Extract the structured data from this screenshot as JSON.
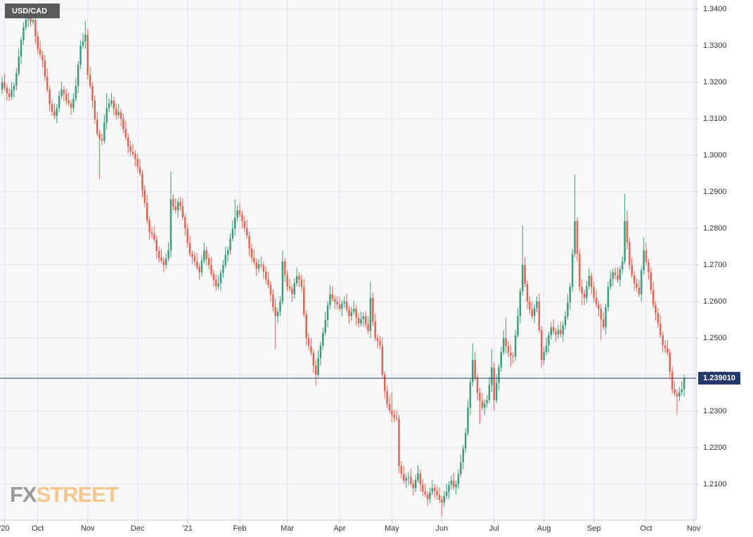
{
  "logo": [
    "FX",
    "STREET"
  ],
  "chart_data": {
    "type": "candlestick",
    "title": "USD/CAD",
    "up_color": "#3a9a78",
    "down_color": "#e2604c",
    "grid": true,
    "last_price": {
      "value": 1.23901,
      "label": "1.239010"
    },
    "ylim": [
      1.2002,
      1.3425
    ],
    "yticks": [
      {
        "value": 1.21,
        "label": "1.2100"
      },
      {
        "value": 1.22,
        "label": "1.2200"
      },
      {
        "value": 1.23,
        "label": "1.2300"
      },
      {
        "value": 1.24,
        "label": "1.2400"
      },
      {
        "value": 1.25,
        "label": "1.2500"
      },
      {
        "value": 1.26,
        "label": "1.2600"
      },
      {
        "value": 1.27,
        "label": "1.2700"
      },
      {
        "value": 1.28,
        "label": "1.2800"
      },
      {
        "value": 1.29,
        "label": "1.2900"
      },
      {
        "value": 1.3,
        "label": "1.3000"
      },
      {
        "value": 1.31,
        "label": "1.3100"
      },
      {
        "value": 1.32,
        "label": "1.3200"
      },
      {
        "value": 1.33,
        "label": "1.3300"
      },
      {
        "value": 1.34,
        "label": "1.3400"
      }
    ],
    "xlim": [
      -0.9,
      292
    ],
    "xticks": [
      {
        "value": 1,
        "label": "'20"
      },
      {
        "value": 15,
        "label": "Oct"
      },
      {
        "value": 36,
        "label": "Nov"
      },
      {
        "value": 57,
        "label": "Dec"
      },
      {
        "value": 78,
        "label": "'21"
      },
      {
        "value": 100,
        "label": "Feb"
      },
      {
        "value": 120,
        "label": "Mar"
      },
      {
        "value": 142,
        "label": "Apr"
      },
      {
        "value": 164,
        "label": "May"
      },
      {
        "value": 185,
        "label": "Jun"
      },
      {
        "value": 207,
        "label": "Jul"
      },
      {
        "value": 228,
        "label": "Aug"
      },
      {
        "value": 249,
        "label": "Sep"
      },
      {
        "value": 271,
        "label": "Oct"
      },
      {
        "value": 291,
        "label": "Nov"
      }
    ],
    "close": [
      1.32,
      1.3185,
      1.317,
      1.316,
      1.3178,
      1.319,
      1.3225,
      1.327,
      1.3315,
      1.335,
      1.3372,
      1.339,
      1.3365,
      1.337,
      1.3325,
      1.329,
      1.3275,
      1.326,
      1.3215,
      1.318,
      1.314,
      1.312,
      1.3108,
      1.313,
      1.3162,
      1.318,
      1.3168,
      1.315,
      1.3142,
      1.313,
      1.3155,
      1.319,
      1.3248,
      1.33,
      1.3312,
      1.333,
      1.322,
      1.319,
      1.315,
      1.3098,
      1.306,
      1.3045,
      1.304,
      1.309,
      1.313,
      1.3142,
      1.315,
      1.3128,
      1.311,
      1.3118,
      1.31,
      1.3072,
      1.305,
      1.3025,
      1.301,
      1.3004,
      1.299,
      1.2968,
      1.295,
      1.2905,
      1.287,
      1.2822,
      1.279,
      1.2785,
      1.277,
      1.2738,
      1.272,
      1.2712,
      1.27,
      1.2718,
      1.274,
      1.288,
      1.286,
      1.285,
      1.2872,
      1.286,
      1.283,
      1.28,
      1.276,
      1.273,
      1.2722,
      1.271,
      1.2695,
      1.268,
      1.2712,
      1.274,
      1.2718,
      1.27,
      1.2676,
      1.266,
      1.2642,
      1.265,
      1.2678,
      1.27,
      1.2728,
      1.274,
      1.2772,
      1.28,
      1.283,
      1.285,
      1.2838,
      1.282,
      1.2802,
      1.278,
      1.2745,
      1.272,
      1.2708,
      1.269,
      1.2702,
      1.27,
      1.2682,
      1.266,
      1.2645,
      1.262,
      1.2585,
      1.256,
      1.2572,
      1.26,
      1.271,
      1.2672,
      1.264,
      1.2635,
      1.262,
      1.265,
      1.267,
      1.266,
      1.264,
      1.2565,
      1.25,
      1.2478,
      1.246,
      1.2425,
      1.24,
      1.2445,
      1.248,
      1.2515,
      1.255,
      1.259,
      1.262,
      1.2608,
      1.26,
      1.2592,
      1.258,
      1.2595,
      1.26,
      1.2578,
      1.256,
      1.2572,
      1.258,
      1.2555,
      1.254,
      1.2552,
      1.256,
      1.2538,
      1.252,
      1.261,
      1.2545,
      1.25,
      1.2492,
      1.248,
      1.24,
      1.2355,
      1.232,
      1.2302,
      1.229,
      1.2282,
      1.228,
      1.215,
      1.2128,
      1.211,
      1.2118,
      1.212,
      1.2102,
      1.209,
      1.2112,
      1.213,
      1.21,
      1.208,
      1.2072,
      1.206,
      1.2078,
      1.209,
      1.2082,
      1.207,
      1.2058,
      1.205,
      1.2068,
      1.208,
      1.2098,
      1.211,
      1.2092,
      1.21,
      1.2128,
      1.216,
      1.2198,
      1.224,
      1.231,
      1.238,
      1.244,
      1.2392,
      1.235,
      1.2328,
      1.231,
      1.2322,
      1.233,
      1.2372,
      1.242,
      1.233,
      1.2378,
      1.242,
      1.2462,
      1.25,
      1.2478,
      1.246,
      1.2452,
      1.245,
      1.2508,
      1.256,
      1.2628,
      1.27,
      1.2648,
      1.26,
      1.2578,
      1.256,
      1.2582,
      1.26,
      1.2522,
      1.244,
      1.2462,
      1.248,
      1.2508,
      1.253,
      1.2518,
      1.251,
      1.2522,
      1.251,
      1.2535,
      1.256,
      1.2598,
      1.264,
      1.273,
      1.282,
      1.273,
      1.264,
      1.2622,
      1.261,
      1.2642,
      1.267,
      1.264,
      1.261,
      1.2592,
      1.258,
      1.2552,
      1.253,
      1.2585,
      1.264,
      1.2662,
      1.268,
      1.2672,
      1.266,
      1.2688,
      1.271,
      1.282,
      1.2762,
      1.27,
      1.2672,
      1.265,
      1.2638,
      1.262,
      1.2685,
      1.274,
      1.2708,
      1.268,
      1.2632,
      1.259,
      1.2568,
      1.254,
      1.2508,
      1.248,
      1.2472,
      1.246,
      1.2408,
      1.236,
      1.2348,
      1.234,
      1.2352,
      1.236,
      1.239
    ],
    "open": [
      1.318,
      1.32,
      1.3185,
      1.317,
      1.316,
      1.3178,
      1.319,
      1.3225,
      1.327,
      1.3315,
      1.335,
      1.3372,
      1.339,
      1.3365,
      1.337,
      1.3325,
      1.329,
      1.3275,
      1.326,
      1.3215,
      1.318,
      1.314,
      1.312,
      1.3108,
      1.313,
      1.3162,
      1.318,
      1.3168,
      1.315,
      1.3142,
      1.313,
      1.3155,
      1.319,
      1.3248,
      1.33,
      1.3312,
      1.333,
      1.322,
      1.319,
      1.315,
      1.3098,
      1.306,
      1.3045,
      1.304,
      1.309,
      1.313,
      1.3142,
      1.315,
      1.3128,
      1.311,
      1.3118,
      1.31,
      1.3072,
      1.305,
      1.3025,
      1.301,
      1.3004,
      1.299,
      1.2968,
      1.295,
      1.2905,
      1.287,
      1.2822,
      1.279,
      1.2785,
      1.277,
      1.2738,
      1.272,
      1.2712,
      1.27,
      1.2718,
      1.274,
      1.288,
      1.286,
      1.285,
      1.2872,
      1.286,
      1.283,
      1.28,
      1.276,
      1.273,
      1.2722,
      1.271,
      1.2695,
      1.268,
      1.2712,
      1.274,
      1.2718,
      1.27,
      1.2676,
      1.266,
      1.2642,
      1.265,
      1.2678,
      1.27,
      1.2728,
      1.274,
      1.2772,
      1.28,
      1.283,
      1.285,
      1.2838,
      1.282,
      1.2802,
      1.278,
      1.2745,
      1.272,
      1.2708,
      1.269,
      1.2702,
      1.27,
      1.2682,
      1.266,
      1.2645,
      1.262,
      1.2585,
      1.256,
      1.2572,
      1.26,
      1.271,
      1.2672,
      1.264,
      1.2635,
      1.262,
      1.265,
      1.267,
      1.266,
      1.264,
      1.2565,
      1.25,
      1.2478,
      1.246,
      1.2425,
      1.24,
      1.2445,
      1.248,
      1.2515,
      1.255,
      1.259,
      1.262,
      1.2608,
      1.26,
      1.2592,
      1.258,
      1.2595,
      1.26,
      1.2578,
      1.256,
      1.2572,
      1.258,
      1.2555,
      1.254,
      1.2552,
      1.256,
      1.2538,
      1.252,
      1.261,
      1.2545,
      1.25,
      1.2492,
      1.248,
      1.24,
      1.2355,
      1.232,
      1.2302,
      1.229,
      1.2282,
      1.228,
      1.215,
      1.2128,
      1.211,
      1.2118,
      1.212,
      1.2102,
      1.209,
      1.2112,
      1.213,
      1.21,
      1.208,
      1.2072,
      1.206,
      1.2078,
      1.209,
      1.2082,
      1.207,
      1.2058,
      1.205,
      1.2068,
      1.208,
      1.2098,
      1.211,
      1.2092,
      1.21,
      1.2128,
      1.216,
      1.2198,
      1.224,
      1.231,
      1.238,
      1.244,
      1.2392,
      1.235,
      1.2328,
      1.231,
      1.2322,
      1.233,
      1.2372,
      1.242,
      1.233,
      1.2378,
      1.242,
      1.2462,
      1.25,
      1.2478,
      1.246,
      1.2452,
      1.245,
      1.2508,
      1.256,
      1.2628,
      1.27,
      1.2648,
      1.26,
      1.2578,
      1.256,
      1.2582,
      1.26,
      1.2522,
      1.244,
      1.2462,
      1.248,
      1.2508,
      1.253,
      1.2518,
      1.251,
      1.2522,
      1.251,
      1.2535,
      1.256,
      1.2598,
      1.264,
      1.273,
      1.282,
      1.273,
      1.264,
      1.2622,
      1.261,
      1.2642,
      1.267,
      1.264,
      1.261,
      1.2592,
      1.258,
      1.2552,
      1.253,
      1.2585,
      1.264,
      1.2662,
      1.268,
      1.2672,
      1.266,
      1.2688,
      1.271,
      1.282,
      1.2762,
      1.27,
      1.2672,
      1.265,
      1.2638,
      1.262,
      1.2685,
      1.274,
      1.2708,
      1.268,
      1.2632,
      1.259,
      1.2568,
      1.254,
      1.2508,
      1.248,
      1.2472,
      1.246,
      1.2408,
      1.236,
      1.2348,
      1.234,
      1.2352,
      1.236
    ],
    "high": [
      1.3214,
      1.3222,
      1.3195,
      1.3184,
      1.32,
      1.32,
      1.3239,
      1.3292,
      1.3325,
      1.3364,
      1.3394,
      1.3415,
      1.3404,
      1.3392,
      1.338,
      1.3339,
      1.3312,
      1.3285,
      1.3274,
      1.3237,
      1.319,
      1.3154,
      1.3142,
      1.314,
      1.3176,
      1.3202,
      1.319,
      1.3182,
      1.3172,
      1.3152,
      1.3169,
      1.3212,
      1.3258,
      1.3314,
      1.3334,
      1.3368,
      1.3344,
      1.3242,
      1.32,
      1.3164,
      1.312,
      1.307,
      1.3059,
      1.3112,
      1.317,
      1.3156,
      1.3172,
      1.316,
      1.3142,
      1.314,
      1.3128,
      1.3114,
      1.3094,
      1.306,
      1.3039,
      1.3032,
      1.3014,
      1.3004,
      1.299,
      1.296,
      1.2919,
      1.2892,
      1.2832,
      1.2804,
      1.2807,
      1.278,
      1.2752,
      1.2742,
      1.2722,
      1.2732,
      1.2762,
      1.2955,
      1.2894,
      1.2882,
      1.2882,
      1.2886,
      1.2882,
      1.284,
      1.2814,
      1.2782,
      1.274,
      1.2736,
      1.2732,
      1.2705,
      1.2726,
      1.2762,
      1.275,
      1.2732,
      1.2722,
      1.2686,
      1.2674,
      1.2672,
      1.2688,
      1.2714,
      1.275,
      1.275,
      1.2786,
      1.2822,
      1.288,
      1.2864,
      1.2872,
      1.2848,
      1.2834,
      1.2824,
      1.279,
      1.2759,
      1.2742,
      1.2718,
      1.2716,
      1.2724,
      1.271,
      1.2696,
      1.2682,
      1.2655,
      1.2634,
      1.2607,
      1.2582,
      1.2614,
      1.274,
      1.272,
      1.2686,
      1.2662,
      1.2645,
      1.2664,
      1.2692,
      1.268,
      1.2674,
      1.2662,
      1.2575,
      1.2514,
      1.25,
      1.247,
      1.2439,
      1.2467,
      1.249,
      1.2529,
      1.2572,
      1.26,
      1.2645,
      1.2642,
      1.2618,
      1.2614,
      1.2614,
      1.2605,
      1.2614,
      1.2622,
      1.2588,
      1.2586,
      1.2602,
      1.259,
      1.2569,
      1.2574,
      1.257,
      1.2574,
      1.256,
      1.2655,
      1.2624,
      1.2567,
      1.251,
      1.2506,
      1.2502,
      1.241,
      1.2369,
      1.2342,
      1.235,
      1.2304,
      1.2304,
      1.229,
      1.2164,
      1.215,
      1.2128,
      1.2134,
      1.2142,
      1.2112,
      1.2126,
      1.2152,
      1.214,
      1.2114,
      1.2102,
      1.2082,
      1.2092,
      1.2112,
      1.21,
      1.2096,
      1.2092,
      1.2068,
      1.2082,
      1.2102,
      1.2108,
      1.2124,
      1.2132,
      1.211,
      1.2142,
      1.2182,
      1.2208,
      1.2254,
      1.2332,
      1.239,
      1.2485,
      1.2462,
      1.2402,
      1.2364,
      1.235,
      1.2332,
      1.2344,
      1.2394,
      1.247,
      1.2434,
      1.24,
      1.243,
      1.2476,
      1.2522,
      1.2555,
      1.2492,
      1.2482,
      1.2462,
      1.2522,
      1.2582,
      1.2638,
      1.2808,
      1.2722,
      1.2658,
      1.2614,
      1.26,
      1.2592,
      1.2614,
      1.2622,
      1.2532,
      1.2476,
      1.2502,
      1.2518,
      1.2544,
      1.2552,
      1.2528,
      1.2536,
      1.2544,
      1.2545,
      1.2574,
      1.262,
      1.265,
      1.2744,
      1.2948,
      1.283,
      1.2744,
      1.2662,
      1.2632,
      1.2656,
      1.2692,
      1.268,
      1.2654,
      1.2632,
      1.2602,
      1.2594,
      1.2574,
      1.2595,
      1.2654,
      1.2684,
      1.269,
      1.2694,
      1.2694,
      1.2698,
      1.2724,
      1.2895,
      1.2848,
      1.2776,
      1.2722,
      1.2682,
      1.2664,
      1.266,
      1.2695,
      1.2775,
      1.2762,
      1.2718,
      1.2694,
      1.2654,
      1.26,
      1.2582,
      1.2562,
      1.2518,
      1.2494,
      1.2494,
      1.247,
      1.2422,
      1.2382,
      1.2358,
      1.2366,
      1.2382,
      1.24
    ],
    "low": [
      1.3168,
      1.3177,
      1.315,
      1.3148,
      1.3152,
      1.3158,
      1.3178,
      1.3217,
      1.325,
      1.3303,
      1.3342,
      1.3352,
      1.3353,
      1.3357,
      1.3305,
      1.3278,
      1.3267,
      1.324,
      1.3203,
      1.3172,
      1.312,
      1.3108,
      1.31,
      1.3088,
      1.3118,
      1.3154,
      1.3148,
      1.3138,
      1.3134,
      1.311,
      1.3118,
      1.3147,
      1.317,
      1.3236,
      1.3292,
      1.3292,
      1.3208,
      1.3182,
      1.313,
      1.3086,
      1.3052,
      1.2935,
      1.3028,
      1.3032,
      1.307,
      1.3118,
      1.3134,
      1.3108,
      1.3098,
      1.3102,
      1.308,
      1.306,
      1.3042,
      1.3005,
      1.2998,
      1.2996,
      1.297,
      1.2956,
      1.2942,
      1.2885,
      1.2858,
      1.2814,
      1.277,
      1.2773,
      1.2762,
      1.2718,
      1.2708,
      1.2704,
      1.268,
      1.2688,
      1.271,
      1.272,
      1.2848,
      1.2842,
      1.283,
      1.2848,
      1.2822,
      1.278,
      1.2748,
      1.2722,
      1.2702,
      1.2698,
      1.2687,
      1.266,
      1.2668,
      1.2704,
      1.2698,
      1.2688,
      1.2668,
      1.264,
      1.263,
      1.2634,
      1.263,
      1.2666,
      1.2692,
      1.2708,
      1.2728,
      1.2764,
      1.278,
      1.2818,
      1.283,
      1.28,
      1.279,
      1.2772,
      1.2725,
      1.2708,
      1.27,
      1.267,
      1.2678,
      1.2692,
      1.2662,
      1.2648,
      1.2637,
      1.26,
      1.2573,
      1.247,
      1.254,
      1.256,
      1.2592,
      1.2652,
      1.2628,
      1.2627,
      1.26,
      1.2608,
      1.2642,
      1.264,
      1.2628,
      1.2557,
      1.248,
      1.2466,
      1.2452,
      1.2405,
      1.237,
      1.2392,
      1.2425,
      1.2468,
      1.2507,
      1.253,
      1.2578,
      1.26,
      1.258,
      1.258,
      1.2572,
      1.256,
      1.2583,
      1.257,
      1.254,
      1.2548,
      1.2564,
      1.2535,
      1.2528,
      1.2532,
      1.2532,
      1.2526,
      1.2512,
      1.25,
      1.2533,
      1.2492,
      1.2472,
      1.2468,
      1.2392,
      1.2335,
      1.2308,
      1.2294,
      1.227,
      1.227,
      1.2272,
      1.213,
      1.2116,
      1.2102,
      1.209,
      1.2098,
      1.2094,
      1.207,
      1.2078,
      1.2104,
      1.208,
      1.2068,
      1.2064,
      1.204,
      1.2048,
      1.207,
      1.2062,
      1.2058,
      1.205,
      1.2012,
      1.2038,
      1.206,
      1.206,
      1.2086,
      1.2084,
      1.2072,
      1.2088,
      1.212,
      1.214,
      1.2186,
      1.2232,
      1.229,
      1.2368,
      1.2384,
      1.233,
      1.2265,
      1.2302,
      1.229,
      1.231,
      1.2322,
      1.2352,
      1.2302,
      1.2322,
      1.2358,
      1.2408,
      1.2454,
      1.2458,
      1.2448,
      1.242,
      1.243,
      1.2438,
      1.25,
      1.254,
      1.2616,
      1.264,
      1.258,
      1.2566,
      1.2552,
      1.254,
      1.257,
      1.2514,
      1.242,
      1.2428,
      1.2454,
      1.246,
      1.2496,
      1.251,
      1.249,
      1.2498,
      1.2502,
      1.249,
      1.2523,
      1.2552,
      1.2578,
      1.2628,
      1.2722,
      1.271,
      1.2628,
      1.259,
      1.259,
      1.2598,
      1.2634,
      1.262,
      1.2598,
      1.2584,
      1.256,
      1.2495,
      1.2522,
      1.251,
      1.2573,
      1.2632,
      1.2642,
      1.266,
      1.2652,
      1.264,
      1.2676,
      1.2702,
      1.2742,
      1.2688,
      1.2664,
      1.263,
      1.2626,
      1.2612,
      1.26,
      1.2673,
      1.27,
      1.266,
      1.262,
      1.2582,
      1.2548,
      1.2528,
      1.25,
      1.246,
      1.246,
      1.2452,
      1.2388,
      1.2348,
      1.234,
      1.229,
      1.2328,
      1.2344,
      1.234
    ]
  }
}
